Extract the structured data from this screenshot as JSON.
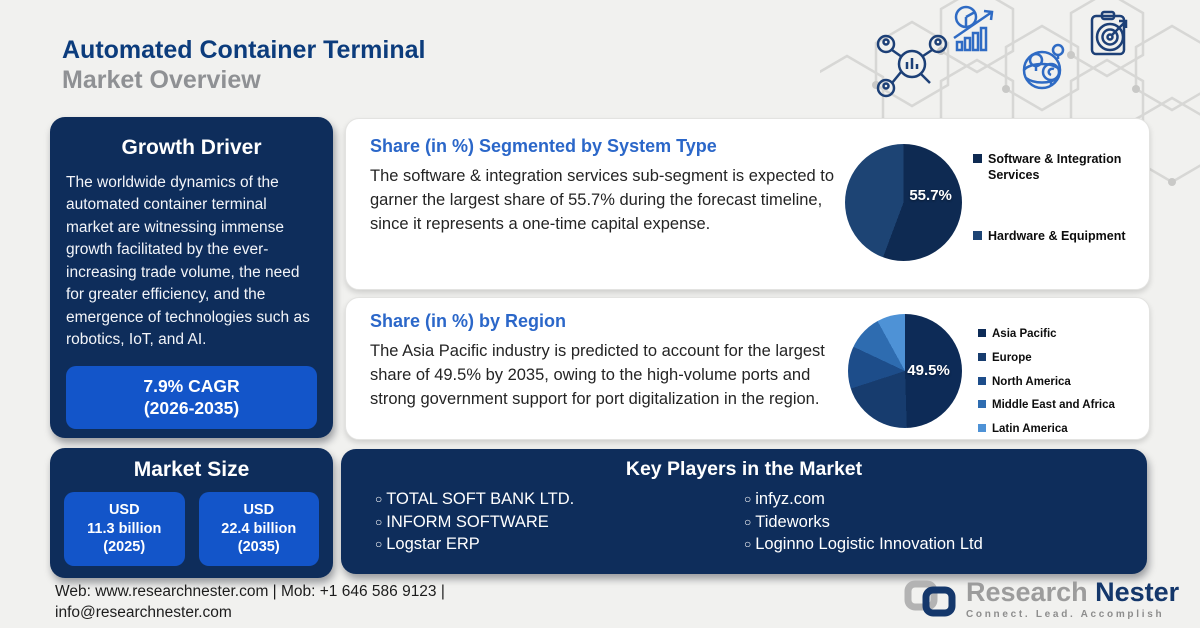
{
  "header": {
    "title_line1": "Automated Container Terminal",
    "title_line2": "Market Overview",
    "decor_icons": [
      "people-network-analysis-icon",
      "pie-growth-chart-icon",
      "globe-currency-icon",
      "clipboard-target-icon"
    ]
  },
  "growth_driver": {
    "title": "Growth Driver",
    "body": "The worldwide dynamics of the automated container terminal market are witnessing immense growth facilitated by the ever-increasing trade volume, the need for greater efficiency, and the emergence of technologies such as robotics, IoT, and AI.",
    "cagr_line1": "7.9% CAGR",
    "cagr_line2": "(2026-2035)"
  },
  "market_size": {
    "title": "Market Size",
    "boxes": [
      {
        "l1": "USD",
        "l2": "11.3 billion",
        "l3": "(2025)"
      },
      {
        "l1": "USD",
        "l2": "22.4 billion",
        "l3": "(2035)"
      }
    ]
  },
  "key_players": {
    "title": "Key Players in the Market",
    "columns": [
      [
        "TOTAL SOFT BANK LTD.",
        "INFORM SOFTWARE",
        "Logstar ERP"
      ],
      [
        "infyz.com",
        "Tideworks",
        "Loginno Logistic Innovation Ltd"
      ]
    ]
  },
  "chart_data": [
    {
      "type": "pie",
      "title": "Share (in %) Segmented by System Type",
      "description": "The software & integration services sub-segment is expected to garner the largest share of 55.7% during the forecast timeline, since it represents a one-time capital expense.",
      "center_label": "55.7%",
      "legend_position": "right",
      "slices": [
        {
          "label": "Software & Integration Services",
          "value": 55.7,
          "color": "#0e2a52"
        },
        {
          "label": "Hardware & Equipment",
          "value": 44.3,
          "color": "#1d4474"
        }
      ]
    },
    {
      "type": "pie",
      "title": "Share (in %) by Region",
      "description": "The Asia Pacific industry is predicted to account for the largest share of 49.5% by 2035, owing to the high-volume ports and strong government support for port digitalization in the region.",
      "center_label": "49.5%",
      "legend_position": "right",
      "slices": [
        {
          "label": "Asia Pacific",
          "value": 49.5,
          "color": "#0d2b57"
        },
        {
          "label": "Europe",
          "value": 20.5,
          "color": "#173c6e"
        },
        {
          "label": "North America",
          "value": 12,
          "color": "#1d4d8a"
        },
        {
          "label": "Middle East and Africa",
          "value": 10,
          "color": "#2e6cb0"
        },
        {
          "label": "Latin America",
          "value": 8,
          "color": "#4e92d6"
        }
      ]
    }
  ],
  "footer": {
    "contact_line1": "Web: www.researchnester.com | Mob: +1 646 586 9123 |",
    "contact_line2": "info@researchnester.com",
    "logo_name1": "Research",
    "logo_name2": "Nester",
    "logo_tagline": "Connect. Lead. Accomplish"
  },
  "colors": {
    "background": "#f1f1ef",
    "navy_panel": "#0e2d5b",
    "accent_blue": "#1355c9",
    "heading_blue": "#2b67c9",
    "title_navy": "#0c3c7c",
    "title_gray": "#8f9194"
  }
}
